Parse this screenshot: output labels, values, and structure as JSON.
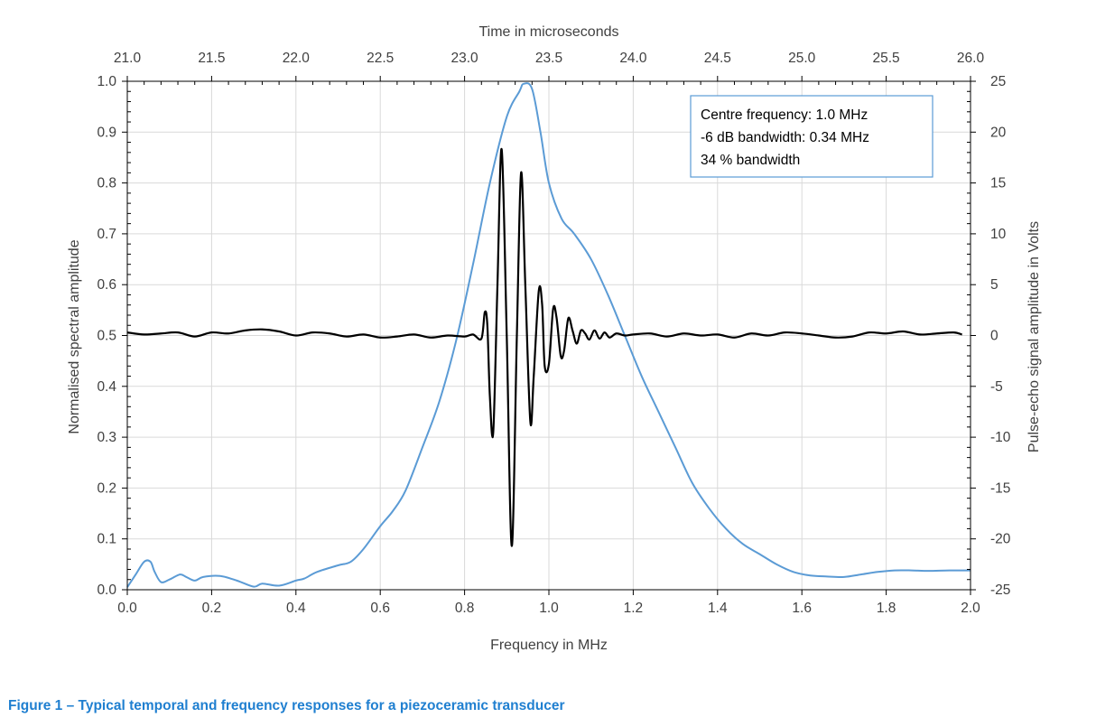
{
  "caption": "Figure 1 – Typical temporal and frequency responses for a piezoceramic transducer",
  "colors": {
    "spectrum": "#5b9bd5",
    "signal": "#000000",
    "caption": "#1f7fd0",
    "grid": "#d9d9d9",
    "annotation_border": "#5b9bd5"
  },
  "chart_data": {
    "type": "line",
    "grid": true,
    "x_primary": {
      "label": "Frequency in MHz",
      "range": [
        0.0,
        2.0
      ],
      "ticks": [
        "0.0",
        "0.2",
        "0.4",
        "0.6",
        "0.8",
        "1.0",
        "1.2",
        "1.4",
        "1.6",
        "1.8",
        "2.0"
      ]
    },
    "x_secondary": {
      "label": "Time in microseconds",
      "range": [
        21.0,
        26.0
      ],
      "ticks": [
        "21.0",
        "21.5",
        "22.0",
        "22.5",
        "23.0",
        "23.5",
        "24.0",
        "24.5",
        "25.0",
        "25.5",
        "26.0"
      ]
    },
    "y_primary": {
      "label": "Normalised spectral amplitude",
      "range": [
        0.0,
        1.0
      ],
      "ticks": [
        "0.0",
        "0.1",
        "0.2",
        "0.3",
        "0.4",
        "0.5",
        "0.6",
        "0.7",
        "0.8",
        "0.9",
        "1.0"
      ]
    },
    "y_secondary": {
      "label": "Pulse-echo signal amplitude in Volts",
      "range": [
        -25,
        25
      ],
      "ticks": [
        "-25",
        "-20",
        "-15",
        "-10",
        "-5",
        "0",
        "5",
        "10",
        "15",
        "20",
        "25"
      ]
    },
    "annotation": [
      "Centre frequency: 1.0 MHz",
      "-6 dB bandwidth: 0.34 MHz",
      "34 % bandwidth"
    ],
    "series": [
      {
        "axes": "frequency-vs-spectral-amplitude",
        "x": [
          0.0,
          0.02,
          0.04,
          0.055,
          0.065,
          0.08,
          0.1,
          0.125,
          0.14,
          0.16,
          0.18,
          0.22,
          0.26,
          0.3,
          0.32,
          0.36,
          0.4,
          0.42,
          0.45,
          0.5,
          0.53,
          0.56,
          0.6,
          0.63,
          0.66,
          0.7,
          0.74,
          0.78,
          0.82,
          0.86,
          0.9,
          0.93,
          0.94,
          0.96,
          0.98,
          1.0,
          1.03,
          1.06,
          1.1,
          1.14,
          1.18,
          1.22,
          1.26,
          1.3,
          1.34,
          1.38,
          1.42,
          1.46,
          1.5,
          1.54,
          1.58,
          1.62,
          1.66,
          1.7,
          1.74,
          1.78,
          1.82,
          1.86,
          1.9,
          1.95,
          2.0
        ],
        "y": [
          0.005,
          0.03,
          0.055,
          0.055,
          0.035,
          0.015,
          0.02,
          0.03,
          0.025,
          0.018,
          0.025,
          0.027,
          0.018,
          0.006,
          0.012,
          0.008,
          0.018,
          0.022,
          0.035,
          0.048,
          0.055,
          0.08,
          0.125,
          0.155,
          0.195,
          0.28,
          0.37,
          0.49,
          0.64,
          0.8,
          0.93,
          0.98,
          0.995,
          0.985,
          0.9,
          0.8,
          0.73,
          0.7,
          0.65,
          0.58,
          0.5,
          0.42,
          0.35,
          0.28,
          0.21,
          0.16,
          0.12,
          0.09,
          0.07,
          0.05,
          0.035,
          0.028,
          0.026,
          0.025,
          0.03,
          0.035,
          0.038,
          0.038,
          0.037,
          0.038,
          0.038
        ]
      },
      {
        "axes": "time-vs-signal-voltage",
        "x": [
          21.0,
          21.1,
          21.2,
          21.3,
          21.4,
          21.5,
          21.6,
          21.7,
          21.8,
          21.9,
          22.0,
          22.1,
          22.2,
          22.3,
          22.4,
          22.5,
          22.6,
          22.7,
          22.8,
          22.9,
          23.0,
          23.05,
          23.1,
          23.12,
          23.135,
          23.15,
          23.17,
          23.195,
          23.22,
          23.25,
          23.28,
          23.31,
          23.335,
          23.36,
          23.39,
          23.41,
          23.44,
          23.46,
          23.475,
          23.5,
          23.525,
          23.545,
          23.57,
          23.59,
          23.615,
          23.64,
          23.665,
          23.69,
          23.715,
          23.74,
          23.77,
          23.8,
          23.83,
          23.86,
          23.9,
          23.95,
          24.0,
          24.1,
          24.2,
          24.3,
          24.4,
          24.5,
          24.6,
          24.7,
          24.8,
          24.9,
          25.0,
          25.1,
          25.2,
          25.3,
          25.4,
          25.5,
          25.6,
          25.7,
          25.8,
          25.9,
          25.95
        ],
        "y": [
          0.3,
          0.1,
          0.2,
          0.3,
          -0.1,
          0.3,
          0.2,
          0.5,
          0.6,
          0.4,
          0.0,
          0.3,
          0.2,
          -0.1,
          0.1,
          -0.2,
          -0.1,
          0.1,
          -0.2,
          0.0,
          -0.1,
          0.1,
          -0.3,
          2.3,
          1.0,
          -6.0,
          -9.5,
          5.0,
          18.3,
          0.0,
          -20.7,
          0.0,
          16.0,
          5.0,
          -8.5,
          -4.0,
          4.4,
          3.0,
          -3.0,
          -2.8,
          2.6,
          1.8,
          -2.0,
          -1.5,
          1.7,
          0.5,
          -0.8,
          0.5,
          0.2,
          -0.4,
          0.5,
          -0.3,
          0.3,
          -0.2,
          0.2,
          0.0,
          0.1,
          0.2,
          -0.1,
          0.2,
          0.0,
          0.1,
          -0.2,
          0.2,
          0.0,
          0.3,
          0.2,
          0.0,
          -0.2,
          -0.1,
          0.3,
          0.2,
          0.4,
          0.1,
          0.2,
          0.3,
          0.1
        ]
      }
    ]
  }
}
